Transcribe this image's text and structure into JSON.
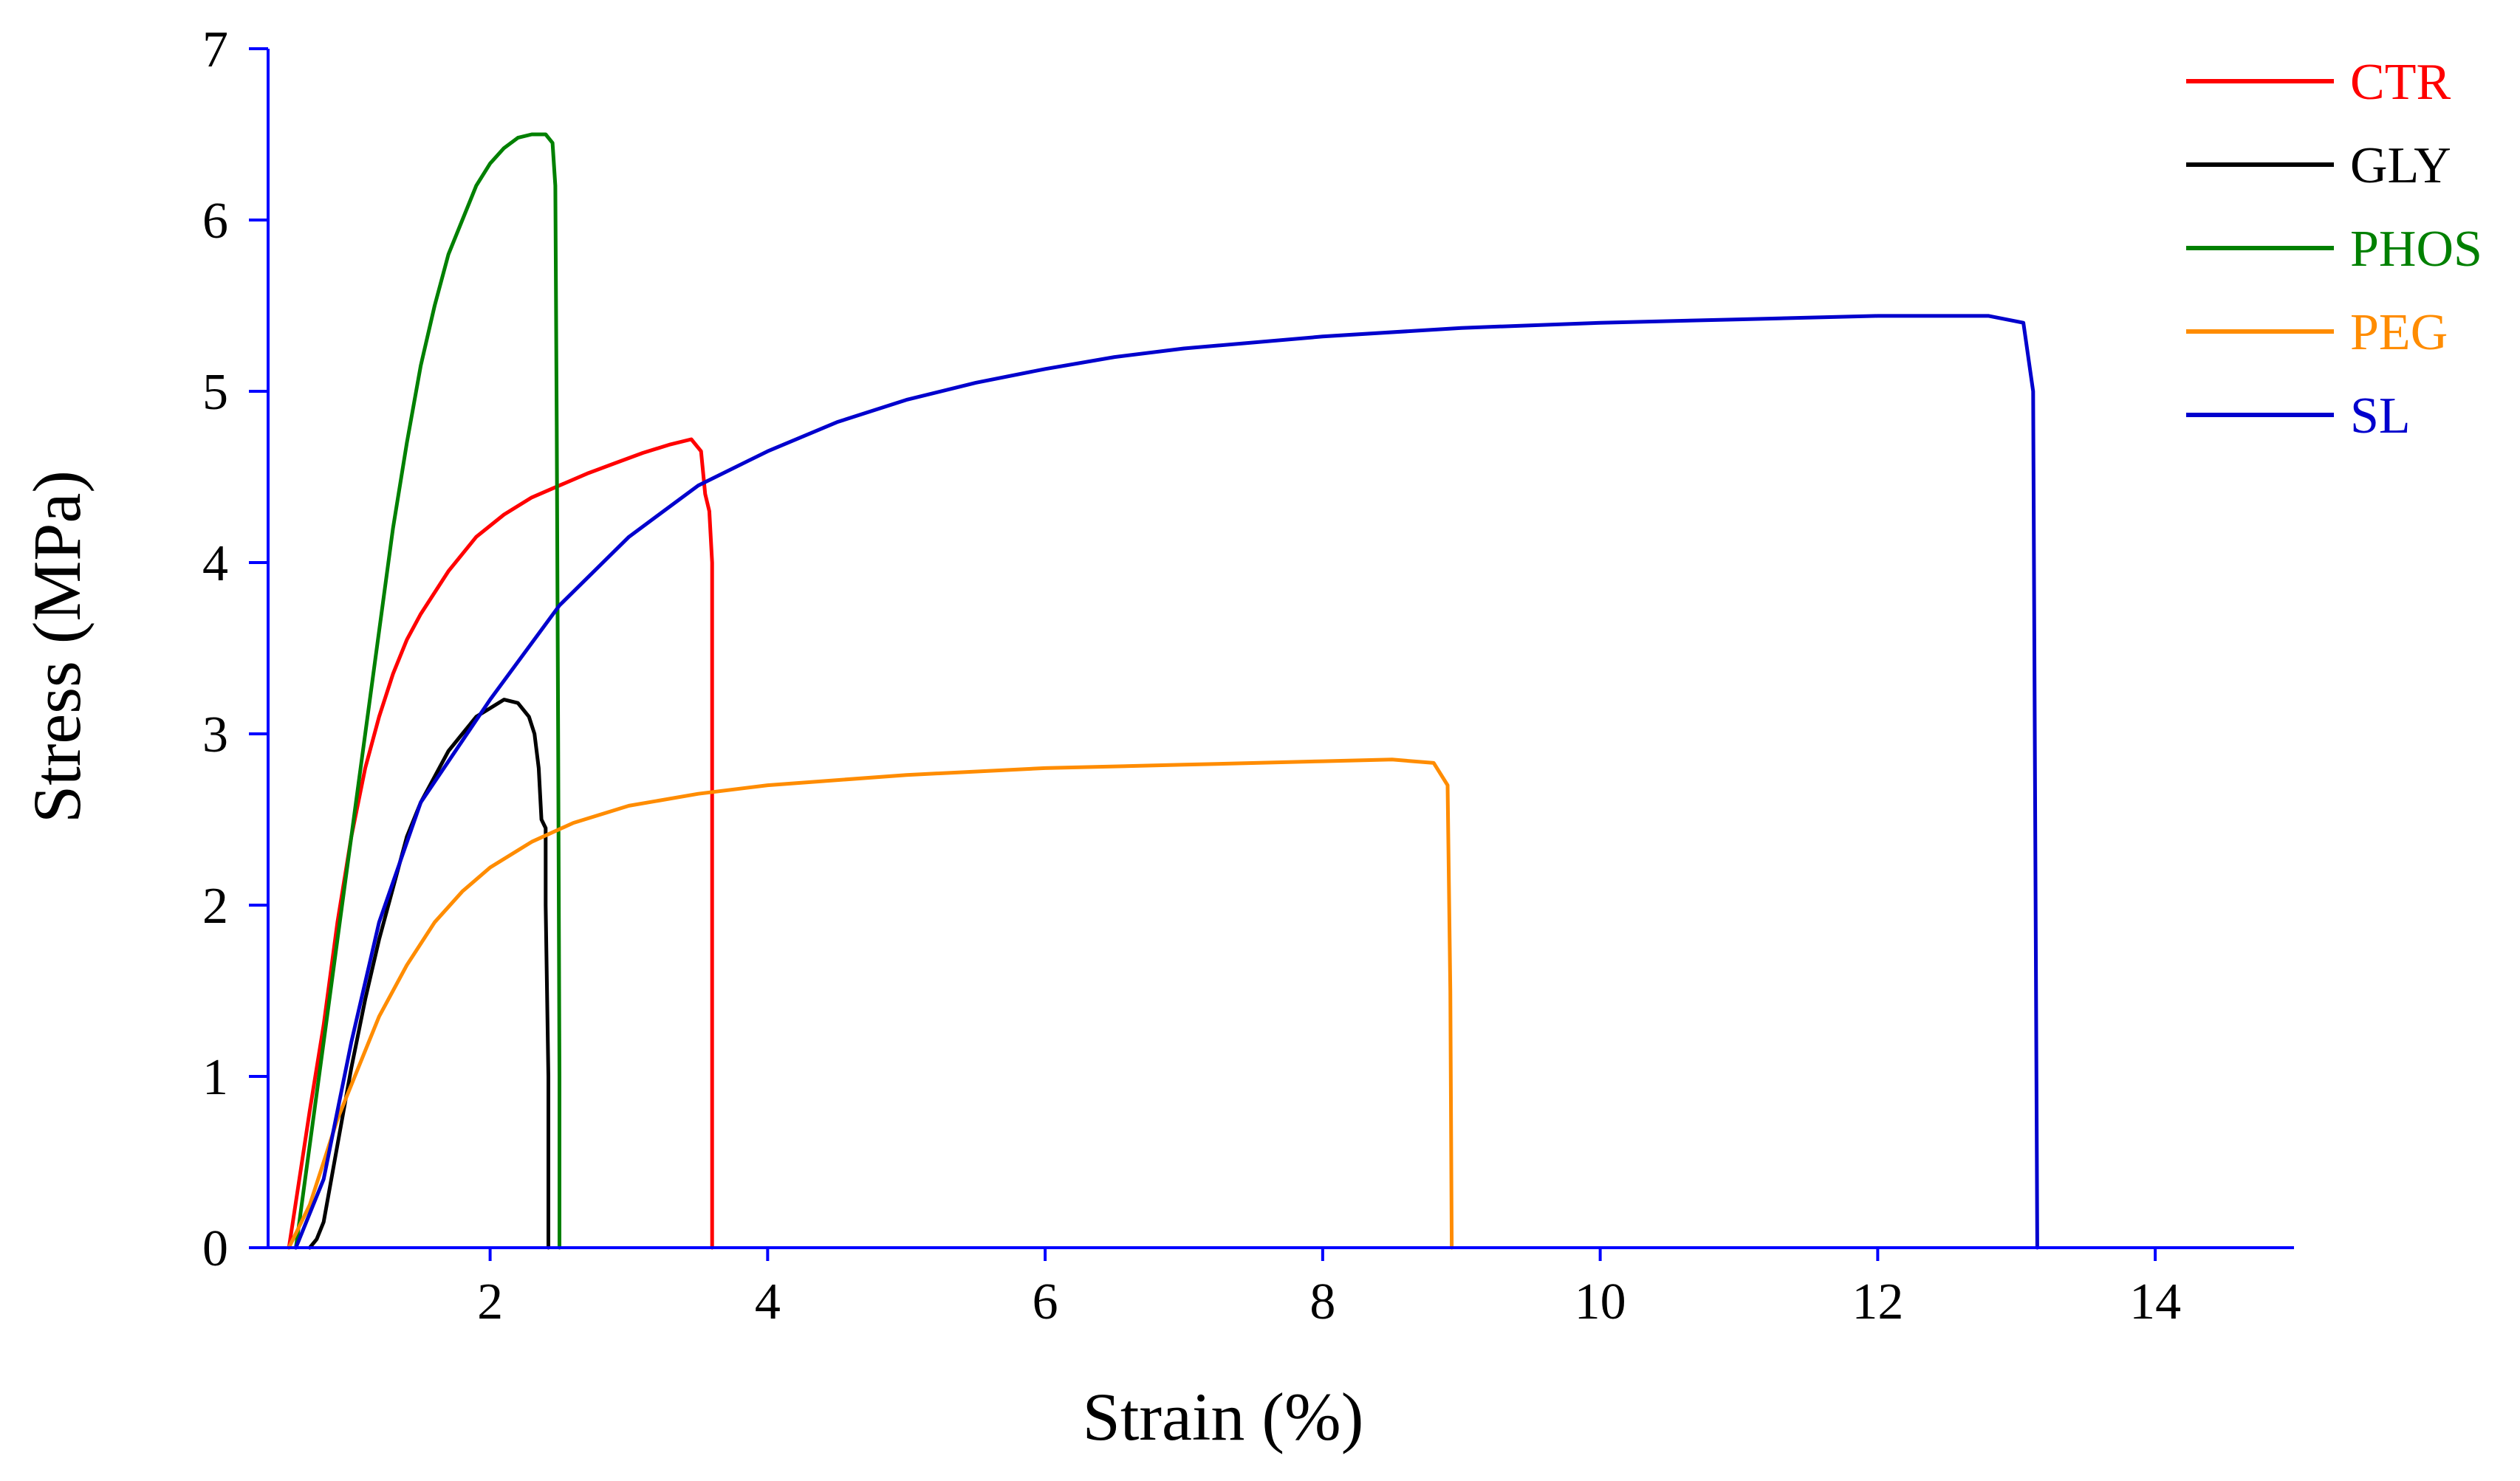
{
  "chart_data": {
    "type": "line",
    "title": "",
    "xlabel": "Strain (%)",
    "ylabel": "Stress (MPa)",
    "xlim": [
      0.4,
      15.0
    ],
    "ylim": [
      0,
      7
    ],
    "xticks": [
      2,
      4,
      6,
      8,
      10,
      12,
      14
    ],
    "yticks": [
      0,
      1,
      2,
      3,
      4,
      5,
      6,
      7
    ],
    "axis_color": "#0000ff",
    "grid": false,
    "legend_position": "top-right",
    "series": [
      {
        "name": "CTR",
        "color": "#ff0000",
        "x": [
          0.55,
          0.7,
          0.8,
          0.9,
          1.0,
          1.1,
          1.2,
          1.3,
          1.4,
          1.5,
          1.7,
          1.9,
          2.1,
          2.3,
          2.5,
          2.7,
          2.9,
          3.1,
          3.3,
          3.45,
          3.52,
          3.55,
          3.58,
          3.6,
          3.6
        ],
        "y": [
          0.0,
          0.8,
          1.3,
          1.9,
          2.4,
          2.8,
          3.1,
          3.35,
          3.55,
          3.7,
          3.95,
          4.15,
          4.28,
          4.38,
          4.45,
          4.52,
          4.58,
          4.64,
          4.69,
          4.72,
          4.65,
          4.4,
          4.3,
          4.0,
          0.0
        ]
      },
      {
        "name": "GLY",
        "color": "#000000",
        "x": [
          0.7,
          0.75,
          0.8,
          0.9,
          1.0,
          1.1,
          1.2,
          1.3,
          1.4,
          1.5,
          1.6,
          1.7,
          1.8,
          1.9,
          2.0,
          2.1,
          2.2,
          2.28,
          2.32,
          2.35,
          2.37,
          2.4,
          2.4,
          2.42,
          2.42
        ],
        "y": [
          0.0,
          0.05,
          0.15,
          0.6,
          1.05,
          1.45,
          1.8,
          2.1,
          2.4,
          2.6,
          2.75,
          2.9,
          3.0,
          3.1,
          3.15,
          3.2,
          3.18,
          3.1,
          3.0,
          2.8,
          2.5,
          2.45,
          2.0,
          1.0,
          0.0
        ]
      },
      {
        "name": "PHOS",
        "color": "#008000",
        "x": [
          0.6,
          0.7,
          0.8,
          0.9,
          1.0,
          1.1,
          1.2,
          1.3,
          1.4,
          1.5,
          1.6,
          1.7,
          1.8,
          1.9,
          2.0,
          2.1,
          2.2,
          2.3,
          2.4,
          2.45,
          2.47,
          2.48,
          2.49,
          2.5,
          2.5
        ],
        "y": [
          0.0,
          0.6,
          1.2,
          1.8,
          2.4,
          3.0,
          3.6,
          4.2,
          4.7,
          5.15,
          5.5,
          5.8,
          6.0,
          6.2,
          6.33,
          6.42,
          6.48,
          6.5,
          6.5,
          6.45,
          6.2,
          4.8,
          3.0,
          1.0,
          0.0
        ]
      },
      {
        "name": "PEG",
        "color": "#ff8c00",
        "x": [
          0.55,
          0.7,
          0.8,
          0.9,
          1.0,
          1.1,
          1.2,
          1.4,
          1.6,
          1.8,
          2.0,
          2.3,
          2.6,
          3.0,
          3.5,
          4.0,
          5.0,
          6.0,
          7.0,
          8.0,
          8.5,
          8.8,
          8.9,
          8.92,
          8.93
        ],
        "y": [
          0.0,
          0.25,
          0.5,
          0.75,
          0.95,
          1.15,
          1.35,
          1.65,
          1.9,
          2.08,
          2.22,
          2.37,
          2.48,
          2.58,
          2.65,
          2.7,
          2.76,
          2.8,
          2.82,
          2.84,
          2.85,
          2.83,
          2.7,
          1.5,
          0.0
        ]
      },
      {
        "name": "SL",
        "color": "#0000cd",
        "x": [
          0.6,
          0.8,
          1.0,
          1.2,
          1.5,
          2.0,
          2.5,
          3.0,
          3.5,
          4.0,
          4.5,
          5.0,
          5.5,
          6.0,
          6.5,
          7.0,
          8.0,
          9.0,
          10.0,
          11.0,
          12.0,
          12.8,
          13.05,
          13.12,
          13.15
        ],
        "y": [
          0.0,
          0.4,
          1.2,
          1.9,
          2.6,
          3.2,
          3.75,
          4.15,
          4.45,
          4.65,
          4.82,
          4.95,
          5.05,
          5.13,
          5.2,
          5.25,
          5.32,
          5.37,
          5.4,
          5.42,
          5.44,
          5.44,
          5.4,
          5.0,
          0.0
        ]
      }
    ]
  }
}
